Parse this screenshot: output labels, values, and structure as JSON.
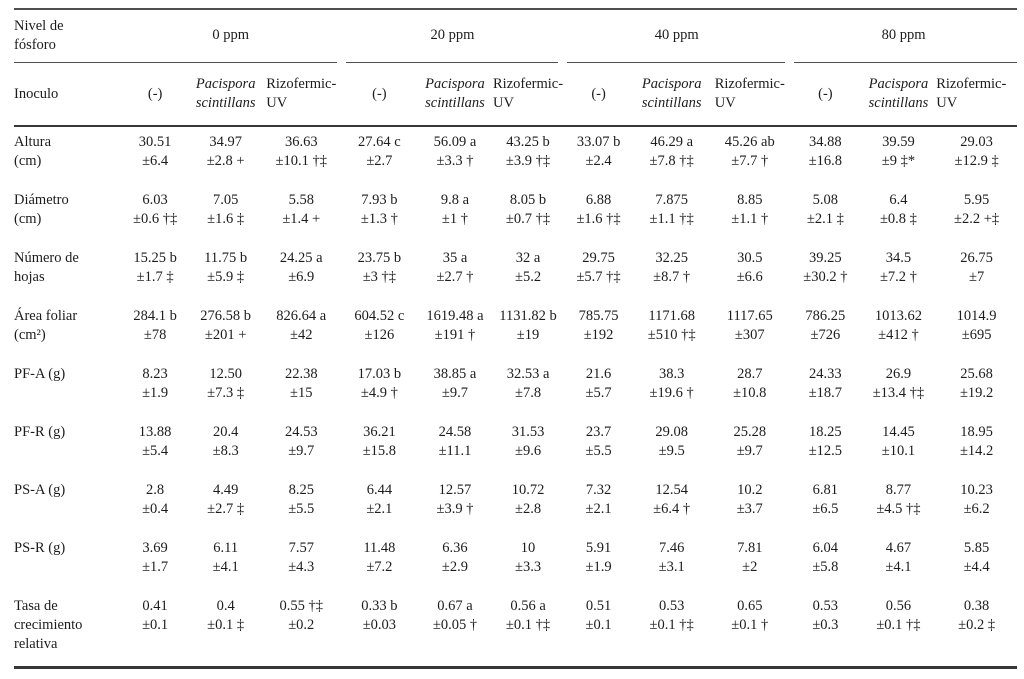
{
  "table": {
    "phosphorus_header": {
      "label_lines": [
        "Nivel de",
        "fósforo"
      ],
      "groups": [
        "0 ppm",
        "20 ppm",
        "40 ppm",
        "80 ppm"
      ]
    },
    "inoculum_header": {
      "label": "Inoculo",
      "cells": [
        {
          "lines": [
            "(-)"
          ],
          "italic": false
        },
        {
          "lines": [
            "Pacispora",
            "scintillans"
          ],
          "italic": true
        },
        {
          "lines": [
            "Rizofermic-",
            "UV"
          ],
          "italic": false
        },
        {
          "lines": [
            "(-)"
          ],
          "italic": false
        },
        {
          "lines": [
            "Pacispora",
            "scintillans"
          ],
          "italic": true
        },
        {
          "lines": [
            "Rizofermic-",
            "UV"
          ],
          "italic": false
        },
        {
          "lines": [
            "(-)"
          ],
          "italic": false
        },
        {
          "lines": [
            "Pacispora",
            "scintillans"
          ],
          "italic": true
        },
        {
          "lines": [
            "Rizofermic-",
            "UV"
          ],
          "italic": false
        },
        {
          "lines": [
            "(-)"
          ],
          "italic": false
        },
        {
          "lines": [
            "Pacispora",
            "scintillans"
          ],
          "italic": true
        },
        {
          "lines": [
            "Rizofermic-UV"
          ],
          "italic": false
        }
      ]
    },
    "rows": [
      {
        "label_lines": [
          "Altura",
          "(cm)"
        ],
        "values": [
          "30.51",
          "34.97",
          "36.63",
          "27.64 c",
          "56.09 a",
          "43.25 b",
          "33.07 b",
          "46.29 a",
          "45.26 ab",
          "34.88",
          "39.59",
          "29.03"
        ],
        "errors": [
          "±6.4",
          "±2.8 +",
          "±10.1 †‡",
          "±2.7",
          "±3.3 †",
          "±3.9 †‡",
          "±2.4",
          "±7.8 †‡",
          "±7.7 †",
          "±16.8",
          "±9 ‡*",
          "±12.9 ‡"
        ]
      },
      {
        "label_lines": [
          "Diámetro",
          "(cm)"
        ],
        "values": [
          "6.03",
          "7.05",
          "5.58",
          "7.93 b",
          "9.8 a",
          "8.05 b",
          "6.88",
          "7.875",
          "8.85",
          "5.08",
          "6.4",
          "5.95"
        ],
        "errors": [
          "±0.6 †‡",
          "±1.6 ‡",
          "±1.4 +",
          "±1.3 †",
          "±1 †",
          "±0.7 †‡",
          "±1.6 †‡",
          "±1.1 †‡",
          "±1.1 †",
          "±2.1 ‡",
          "±0.8 ‡",
          "±2.2 +‡"
        ]
      },
      {
        "label_lines": [
          "Número de",
          "hojas"
        ],
        "values": [
          "15.25 b",
          "11.75 b",
          "24.25 a",
          "23.75 b",
          "35 a",
          "32 a",
          "29.75",
          "32.25",
          "30.5",
          "39.25",
          "34.5",
          "26.75"
        ],
        "errors": [
          "±1.7 ‡",
          "±5.9 ‡",
          "±6.9",
          "±3 †‡",
          "±2.7 †",
          "±5.2",
          "±5.7 †‡",
          "±8.7 †",
          "±6.6",
          "±30.2 †",
          "±7.2 †",
          "±7"
        ]
      },
      {
        "label_lines": [
          "Área foliar",
          "(cm²)"
        ],
        "values": [
          "284.1 b",
          "276.58 b",
          "826.64 a",
          "604.52 c",
          "1619.48 a",
          "1131.82 b",
          "785.75",
          "1171.68",
          "1117.65",
          "786.25",
          "1013.62",
          "1014.9"
        ],
        "errors": [
          "±78",
          "±201 +",
          "±42",
          "±126",
          "±191 †",
          "±19",
          "±192",
          "±510 †‡",
          "±307",
          "±726",
          "±412 †",
          "±695"
        ]
      },
      {
        "label_lines": [
          "PF-A (g)"
        ],
        "values": [
          "8.23",
          "12.50",
          "22.38",
          "17.03 b",
          "38.85 a",
          "32.53 a",
          "21.6",
          "38.3",
          "28.7",
          "24.33",
          "26.9",
          "25.68"
        ],
        "errors": [
          "±1.9",
          "±7.3 ‡",
          "±15",
          "±4.9 †",
          "±9.7",
          "±7.8",
          "±5.7",
          "±19.6 †",
          "±10.8",
          "±18.7",
          "±13.4 †‡",
          "±19.2"
        ]
      },
      {
        "label_lines": [
          "PF-R (g)"
        ],
        "values": [
          "13.88",
          "20.4",
          "24.53",
          "36.21",
          "24.58",
          "31.53",
          "23.7",
          "29.08",
          "25.28",
          "18.25",
          "14.45",
          "18.95"
        ],
        "errors": [
          "±5.4",
          "±8.3",
          "±9.7",
          "±15.8",
          "±11.1",
          "±9.6",
          "±5.5",
          "±9.5",
          "±9.7",
          "±12.5",
          "±10.1",
          "±14.2"
        ]
      },
      {
        "label_lines": [
          "PS-A (g)"
        ],
        "values": [
          "2.8",
          "4.49",
          "8.25",
          "6.44",
          "12.57",
          "10.72",
          "7.32",
          "12.54",
          "10.2",
          "6.81",
          "8.77",
          "10.23"
        ],
        "errors": [
          "±0.4",
          "±2.7 ‡",
          "±5.5",
          "±2.1",
          "±3.9 †",
          "±2.8",
          "±2.1",
          "±6.4 †",
          "±3.7",
          "±6.5",
          "±4.5 †‡",
          "±6.2"
        ]
      },
      {
        "label_lines": [
          "PS-R (g)"
        ],
        "values": [
          "3.69",
          "6.11",
          "7.57",
          "11.48",
          "6.36",
          "10",
          "5.91",
          "7.46",
          "7.81",
          "6.04",
          "4.67",
          "5.85"
        ],
        "errors": [
          "±1.7",
          "±4.1",
          "±4.3",
          "±7.2",
          "±2.9",
          "±3.3",
          "±1.9",
          "±3.1",
          "±2",
          "±5.8",
          "±4.1",
          "±4.4"
        ]
      },
      {
        "label_lines": [
          "Tasa de",
          "crecimiento",
          "relativa"
        ],
        "values": [
          "0.41",
          "0.4",
          "0.55 †‡",
          "0.33 b",
          "0.67 a",
          "0.56 a",
          "0.51",
          "0.53",
          "0.65",
          "0.53",
          "0.56",
          "0.38"
        ],
        "errors": [
          "±0.1",
          "±0.1 ‡",
          "±0.2",
          "±0.03",
          "±0.05 †",
          "±0.1 †‡",
          "±0.1",
          "±0.1 †‡",
          "±0.1 †",
          "±0.3",
          "±0.1 †‡",
          "±0.2 ‡"
        ]
      }
    ],
    "footnote_symbols": [
      "+",
      "†",
      "‡",
      "*"
    ],
    "colors": {
      "text": "#1c1c1c",
      "rule": "#4f4f4f",
      "background": "#ffffff"
    }
  }
}
